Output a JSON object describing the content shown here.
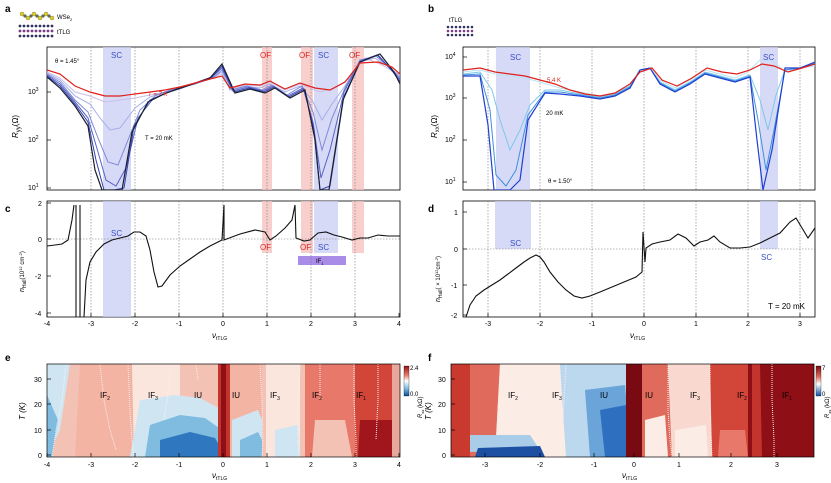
{
  "figure": {
    "panels": [
      {
        "label": "a",
        "legend_top": "WSe",
        "legend_top_sub": "2",
        "legend_bottom": "tTLG",
        "theta": "θ = 1.45°",
        "high_T_label": "T = 7 K",
        "low_T_label": "T = 20 mK",
        "sc_label": "SC",
        "of_label": "OF",
        "ylabel": "R",
        "ylabel_sub": "yy",
        "ylabel_unit": "(Ω)",
        "yticks": [
          "10",
          "10",
          "10"
        ],
        "yticks_exp": [
          "1",
          "2",
          "3"
        ]
      },
      {
        "label": "b",
        "legend_top": "tTLG",
        "theta": "θ = 1.50°",
        "high_T_label": "5.4 K",
        "low_T_label": "20 mK",
        "sc_label": "SC",
        "ylabel": "R",
        "ylabel_sub": "xx",
        "ylabel_unit": "(Ω)",
        "yticks": [
          "10",
          "10",
          "10",
          "10"
        ],
        "yticks_exp": [
          "1",
          "2",
          "3",
          "4"
        ]
      },
      {
        "label": "c",
        "sc_label": "SC",
        "of_label": "OF",
        "if_label": "IF",
        "if_sub": "1",
        "ylabel": "n",
        "ylabel_sub": "Hall",
        "ylabel_unit": "(10",
        "ylabel_exp": "12",
        "ylabel_tail": " cm",
        "ylabel_tail_exp": "-2",
        "yticks": [
          "2",
          "0",
          "-2",
          "-4"
        ],
        "xlabel": "ν",
        "xlabel_sub": "tTLG",
        "xticks": [
          "-4",
          "-3",
          "-2",
          "-1",
          "0",
          "1",
          "2",
          "3",
          "4"
        ]
      },
      {
        "label": "d",
        "sc_label": "SC",
        "temp": "T = 20 mK",
        "ylabel": "n",
        "ylabel_sub": "Hall",
        "ylabel_unit": "( × 10",
        "ylabel_exp": "12",
        "ylabel_tail": "cm",
        "ylabel_tail_exp": "-2",
        "yticks": [
          "1",
          "0",
          "-1",
          "-2"
        ],
        "xlabel": "ν",
        "xlabel_sub": "tTLG",
        "xticks": [
          "-3",
          "-2",
          "-1",
          "0",
          "1",
          "2",
          "3"
        ]
      },
      {
        "label": "e",
        "regions": [
          "IF2",
          "IF3",
          "IU",
          "IU",
          "IF3",
          "IF2",
          "IF1"
        ],
        "region_base": [
          "IF",
          "IF",
          "IU",
          "IU",
          "IF",
          "IF",
          "IF"
        ],
        "region_sub": [
          "2",
          "3",
          "",
          "",
          "3",
          "2",
          "1"
        ],
        "ylabel": "T (K)",
        "yticks": [
          "0",
          "10",
          "20",
          "30"
        ],
        "xlabel": "ν",
        "xlabel_sub": "tTLG",
        "xticks": [
          "-4",
          "-3",
          "-2",
          "-1",
          "0",
          "1",
          "2",
          "3",
          "4"
        ],
        "cbar_label": "R",
        "cbar_sub": "xx",
        "cbar_unit": " (kΩ)",
        "cbar_ticks": [
          "2.4",
          "0.0"
        ]
      },
      {
        "label": "f",
        "regions": [
          "IF2",
          "IF3",
          "IU",
          "IU",
          "IF3",
          "IF2",
          "IF1"
        ],
        "region_base": [
          "IF",
          "IF",
          "IU",
          "IU",
          "IF",
          "IF",
          "IF"
        ],
        "region_sub": [
          "2",
          "3",
          "",
          "",
          "3",
          "2",
          "1"
        ],
        "ylabel": "T (K)",
        "yticks": [
          "0",
          "10",
          "20",
          "30"
        ],
        "xlabel": "ν",
        "xlabel_sub": "tTLG",
        "xticks": [
          "-3",
          "-2",
          "-1",
          "0",
          "1",
          "2",
          "3"
        ],
        "cbar_label": "R",
        "cbar_sub": "xx",
        "cbar_unit": " (kΩ)",
        "cbar_ticks": [
          "7",
          "0"
        ]
      }
    ]
  },
  "colors": {
    "red": "#e0201b",
    "blue": "#3a4ec8",
    "sc_band": "#c9cdf3",
    "of_band": "#f6c3c0",
    "if_bar": "#a98be8"
  }
}
